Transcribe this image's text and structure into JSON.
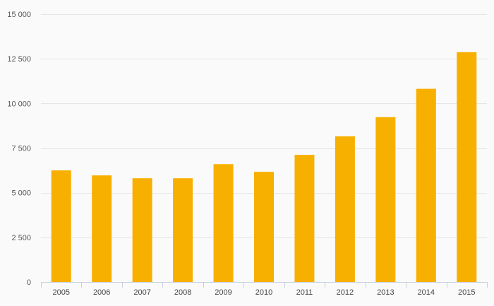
{
  "chart_data": {
    "type": "bar",
    "title": "",
    "xlabel": "",
    "ylabel": "",
    "categories": [
      "2005",
      "2006",
      "2007",
      "2008",
      "2009",
      "2010",
      "2011",
      "2012",
      "2013",
      "2014",
      "2015"
    ],
    "values": [
      6250,
      5970,
      5810,
      5810,
      6600,
      6170,
      7120,
      8160,
      9230,
      10820,
      12870
    ],
    "ylim": [
      0,
      15000
    ],
    "yticks": [
      0,
      2500,
      5000,
      7500,
      10000,
      12500,
      15000
    ],
    "ytick_labels": [
      "0",
      "2 500",
      "5 000",
      "7 500",
      "10 000",
      "12 500",
      "15 000"
    ],
    "grid": true,
    "legend": "none",
    "colors": {
      "bar": "#f8b000",
      "grid": "#e6e6e6",
      "axis": "#c8cfe0",
      "background": "#fafafa"
    }
  }
}
